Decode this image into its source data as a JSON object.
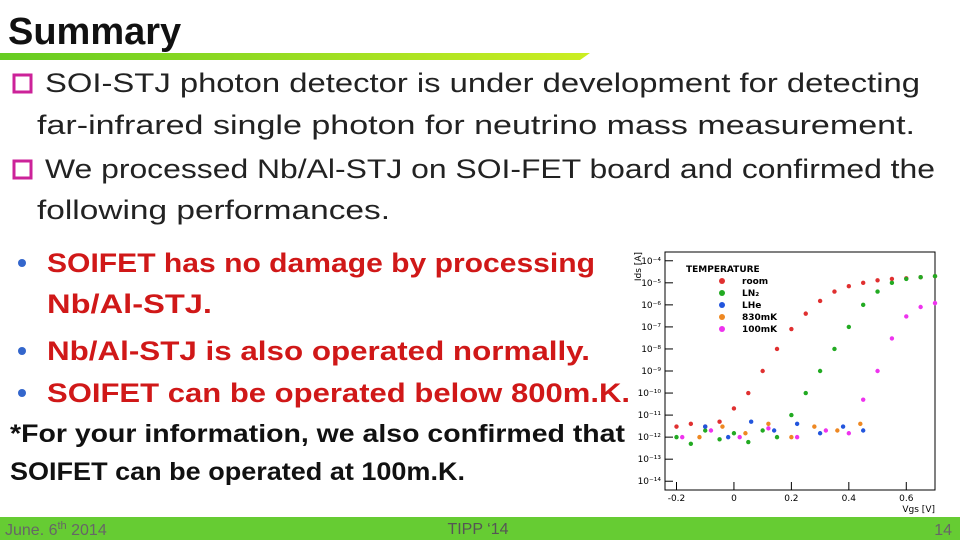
{
  "title": "Summary",
  "bullets": [
    {
      "lines": [
        "SOI-STJ photon detector is under development for detecting",
        "far-infrared single photon for neutrino mass measurement."
      ]
    },
    {
      "lines": [
        "We processed Nb/Al-STJ on SOI-FET board and confirmed the",
        "following performances."
      ]
    }
  ],
  "sub_bullets": [
    {
      "lines": [
        "SOIFET has no damage by processing",
        "Nb/Al-STJ."
      ]
    },
    {
      "lines": [
        "Nb/Al-STJ is also operated normally."
      ]
    },
    {
      "lines": [
        "SOIFET can be operated below 800m.K."
      ]
    }
  ],
  "note": {
    "lines": [
      "*For your information, we also confirmed that",
      "SOIFET can be operated at 100m.K."
    ]
  },
  "footer": {
    "date": {
      "main": "June. 6",
      "sup": "th",
      "year": "2014"
    },
    "event": "TIPP ‘14",
    "page": "14"
  },
  "plot": {
    "type": "scatter",
    "x_label": "Vgs [V]",
    "y_label": "Ids [A]",
    "legend_title": "TEMPERATURE",
    "log_y": true,
    "xlim": [
      -0.24,
      0.7
    ],
    "ylim": [
      4e-15,
      0.00025
    ],
    "xticks": [
      -0.2,
      0,
      0.2,
      0.4,
      0.6
    ],
    "yticks": [
      {
        "value": 0.0001,
        "label": "10⁻⁴"
      },
      {
        "value": 1e-05,
        "label": "10⁻⁵"
      },
      {
        "value": 1e-06,
        "label": "10⁻⁶"
      },
      {
        "value": 1e-07,
        "label": "10⁻⁷"
      },
      {
        "value": 1e-08,
        "label": "10⁻⁸"
      },
      {
        "value": 1e-09,
        "label": "10⁻⁹"
      },
      {
        "value": 1e-10,
        "label": "10⁻¹⁰"
      },
      {
        "value": 1e-11,
        "label": "10⁻¹¹"
      },
      {
        "value": 1e-12,
        "label": "10⁻¹²"
      },
      {
        "value": 1e-13,
        "label": "10⁻¹³"
      },
      {
        "value": 1e-14,
        "label": "10⁻¹⁴"
      }
    ],
    "series": [
      {
        "name": "room",
        "color": "#e03030",
        "x": [
          -0.2,
          -0.15,
          -0.1,
          -0.05,
          0,
          0.05,
          0.1,
          0.15,
          0.2,
          0.25,
          0.3,
          0.35,
          0.4,
          0.45,
          0.5,
          0.55,
          0.6,
          0.65,
          0.7
        ],
        "values": [
          3e-12,
          4e-12,
          3e-12,
          5e-12,
          2e-11,
          1e-10,
          1e-09,
          1e-08,
          8e-08,
          4e-07,
          1.5e-06,
          4e-06,
          7e-06,
          1e-05,
          1.3e-05,
          1.5e-05,
          1.6e-05,
          1.8e-05,
          2e-05
        ]
      },
      {
        "name": "LN₂",
        "color": "#22aa22",
        "x": [
          -0.2,
          -0.15,
          -0.1,
          -0.05,
          0,
          0.05,
          0.1,
          0.15,
          0.2,
          0.25,
          0.3,
          0.35,
          0.4,
          0.45,
          0.5,
          0.55,
          0.6,
          0.65,
          0.7
        ],
        "values": [
          1e-12,
          5e-13,
          2e-12,
          8e-13,
          1.5e-12,
          6e-13,
          2e-12,
          1e-12,
          1e-11,
          1e-10,
          1e-09,
          1e-08,
          1e-07,
          1e-06,
          4e-06,
          1e-05,
          1.5e-05,
          1.8e-05,
          2e-05
        ]
      },
      {
        "name": "LHe",
        "color": "#2255dd",
        "x": [
          -0.1,
          -0.02,
          0.06,
          0.14,
          0.22,
          0.3,
          0.38,
          0.45
        ],
        "values": [
          3e-12,
          1e-12,
          5e-12,
          2e-12,
          4e-12,
          1.5e-12,
          3e-12,
          2e-12
        ]
      },
      {
        "name": "830mK",
        "color": "#ee8822",
        "x": [
          -0.12,
          -0.04,
          0.04,
          0.12,
          0.2,
          0.28,
          0.36,
          0.44
        ],
        "values": [
          1e-12,
          3e-12,
          1.5e-12,
          4e-12,
          1e-12,
          3e-12,
          2e-12,
          4e-12
        ]
      },
      {
        "name": "100mK",
        "color": "#ee33ee",
        "x": [
          -0.18,
          -0.08,
          0.02,
          0.12,
          0.22,
          0.32,
          0.4,
          0.45,
          0.5,
          0.55,
          0.6,
          0.65,
          0.7
        ],
        "values": [
          1e-12,
          2e-12,
          1e-12,
          2.5e-12,
          1e-12,
          2e-12,
          1.5e-12,
          5e-11,
          1e-09,
          3e-08,
          3e-07,
          8e-07,
          1.2e-06
        ]
      }
    ]
  }
}
